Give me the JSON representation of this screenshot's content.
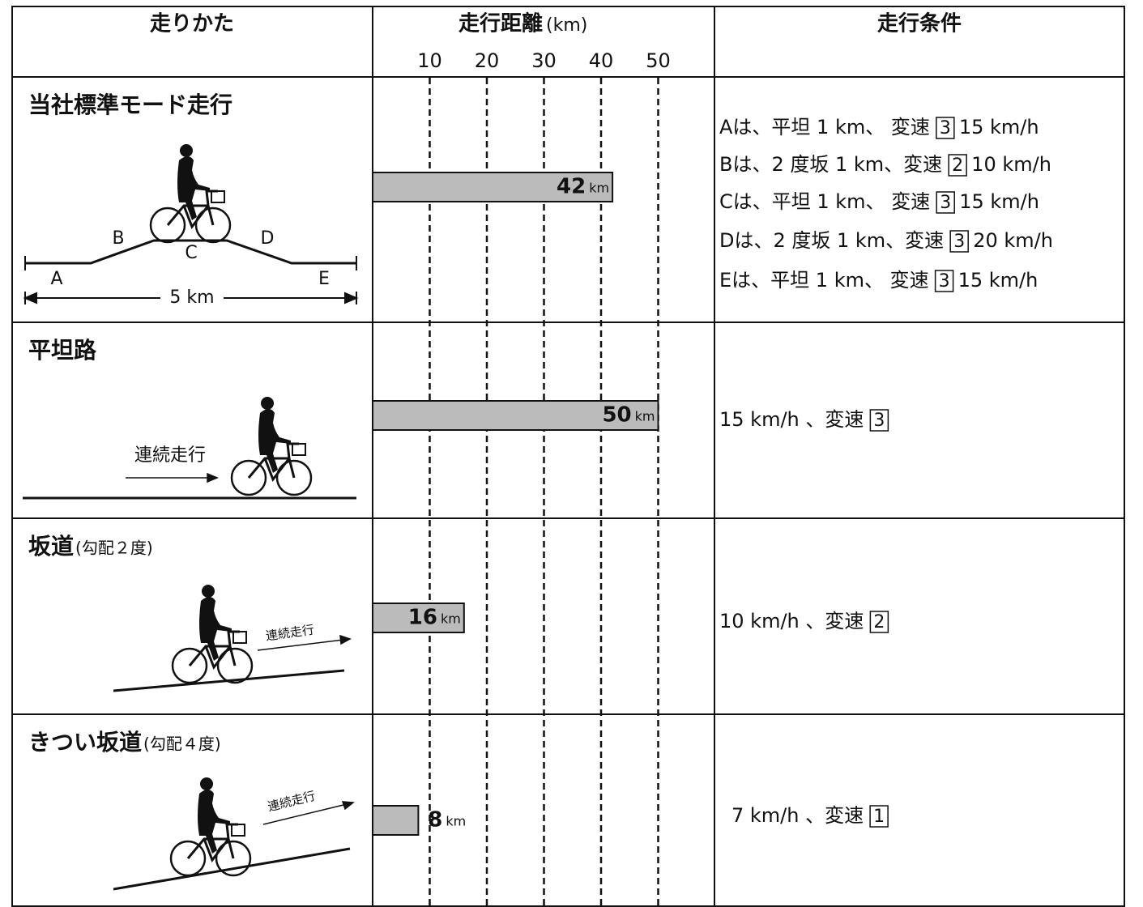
{
  "header": {
    "method": "走りかた",
    "distance": "走行距離",
    "distance_unit": "(km)",
    "conditions": "走行条件"
  },
  "axis": {
    "xlim": [
      0,
      50
    ],
    "xticks": [
      10,
      20,
      30,
      40,
      50
    ]
  },
  "rows": [
    {
      "title": "当社標準モード走行",
      "labels": [
        "A",
        "B",
        "C",
        "D",
        "E",
        "5 km"
      ],
      "value": 42,
      "unit": "km",
      "conditions": [
        {
          "text": "Aは、平坦 1 km、 変速",
          "gear": "3",
          "speed": "15 km/h"
        },
        {
          "text": "Bは、2 度坂 1 km、変速",
          "gear": "2",
          "speed": "10 km/h"
        },
        {
          "text": "Cは、平坦 1 km、 変速",
          "gear": "3",
          "speed": "15 km/h"
        },
        {
          "text": "Dは、2 度坂 1 km、変速",
          "gear": "3",
          "speed": "20 km/h"
        },
        {
          "text": "Eは、平坦 1 km、 変速",
          "gear": "3",
          "speed": "15 km/h"
        }
      ]
    },
    {
      "title": "平坦路",
      "labels": [
        "連続走行"
      ],
      "value": 50,
      "unit": "km",
      "conditions": [
        {
          "text": "15 km/h 、変速",
          "gear": "3"
        }
      ]
    },
    {
      "title": "坂道",
      "note": "(勾配２度)",
      "labels": [
        "連続走行"
      ],
      "value": 16,
      "unit": "km",
      "conditions": [
        {
          "text": "10 km/h 、変速",
          "gear": "2"
        }
      ]
    },
    {
      "title": "きつい坂道",
      "note": "(勾配４度)",
      "labels": [
        "連続走行"
      ],
      "value": 8,
      "unit": "km",
      "conditions": [
        {
          "text": "7 km/h 、変速",
          "gear": "1"
        }
      ]
    }
  ]
}
